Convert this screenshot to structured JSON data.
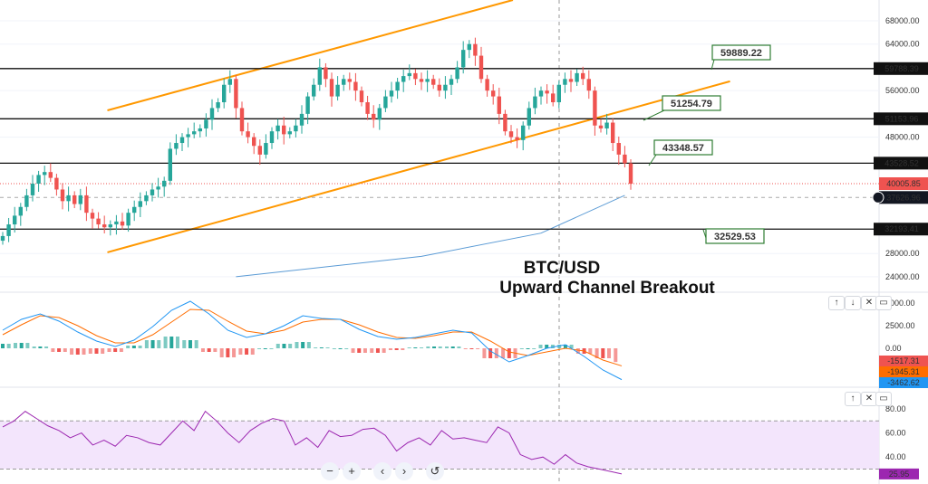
{
  "chart_data": {
    "type": "candlestick",
    "symbol_title": "BTC/USD",
    "subtitle": "Upward Channel Breakout",
    "price_axis": {
      "ticks": [
        24000,
        28000,
        48000,
        56000,
        64000,
        68000
      ],
      "ylim": [
        22500,
        71500
      ]
    },
    "closes": [
      31000,
      33000,
      34500,
      36000,
      38000,
      40000,
      41500,
      42000,
      41000,
      39000,
      37000,
      38000,
      36500,
      38000,
      35000,
      34000,
      33000,
      32500,
      33000,
      33500,
      32800,
      35000,
      36000,
      37000,
      38000,
      39000,
      39500,
      40500,
      46000,
      47000,
      48000,
      48500,
      49000,
      49500,
      51000,
      53000,
      54000,
      57000,
      58000,
      53000,
      49000,
      48000,
      46500,
      45000,
      47000,
      49000,
      50000,
      48500,
      49000,
      50000,
      52000,
      55000,
      57000,
      60000,
      58000,
      55000,
      57000,
      58000,
      57500,
      56000,
      54000,
      52000,
      51000,
      53000,
      55000,
      56000,
      57500,
      58500,
      59000,
      58000,
      57500,
      58000,
      57000,
      56000,
      57000,
      58000,
      60000,
      63000,
      64000,
      62000,
      58000,
      56000,
      55000,
      52000,
      49000,
      48000,
      47500,
      50000,
      53000,
      55000,
      56000,
      55500,
      54000,
      57000,
      58000,
      57500,
      59000,
      58000,
      56000,
      50000,
      49500,
      50500,
      47000,
      45000,
      43500,
      40000
    ],
    "horizontal_levels": [
      {
        "price": 59788.39,
        "label": "59788.39"
      },
      {
        "price": 51153.96,
        "label": "51153.96"
      },
      {
        "price": 43528.52,
        "label": "43528.52"
      },
      {
        "price": 32193.41,
        "label": "32193.41"
      }
    ],
    "annotations": [
      {
        "text": "59889.22",
        "price": 59889.22
      },
      {
        "text": "51254.79",
        "price": 51254.79
      },
      {
        "text": "43348.57",
        "price": 43348.57
      },
      {
        "text": "32529.53",
        "price": 32529.53
      }
    ],
    "channel": {
      "upper": [
        [
          17.5,
          52600
        ],
        [
          85.3,
          71580
        ]
      ],
      "lower": [
        [
          17.5,
          28200
        ],
        [
          121.6,
          57600
        ]
      ],
      "color": "#ff9800"
    },
    "moving_average": {
      "points": [
        [
          39,
          24000
        ],
        [
          70,
          27500
        ],
        [
          90,
          31500
        ],
        [
          104,
          38000
        ]
      ],
      "color": "#5b9bd5"
    },
    "last_price": {
      "label": "40005.85",
      "price": 40005.85,
      "color": "#ef5350"
    },
    "crosshair_price": {
      "label": "37626.96",
      "price": 37626.96
    },
    "macd": {
      "ticks": [
        5000,
        2500,
        0
      ],
      "macd": [
        2000,
        3200,
        3800,
        3000,
        1800,
        800,
        200,
        900,
        2400,
        4200,
        5200,
        3800,
        2000,
        1200,
        1600,
        2500,
        3600,
        3300,
        3200,
        2100,
        1300,
        1000,
        1200,
        1600,
        2000,
        1700,
        -300,
        -1500,
        -800,
        0,
        400,
        -900,
        -2400,
        -3462.62
      ],
      "signal": [
        1500,
        2600,
        3600,
        3400,
        2500,
        1400,
        600,
        600,
        1500,
        2900,
        4300,
        4200,
        3000,
        1900,
        1600,
        2000,
        2900,
        3200,
        3200,
        2600,
        1800,
        1200,
        1100,
        1400,
        1800,
        1800,
        800,
        -400,
        -800,
        -400,
        0,
        -300,
        -1300,
        -1945.31
      ],
      "histogram": [
        500,
        600,
        200,
        -400,
        -700,
        -600,
        -400,
        300,
        900,
        1300,
        900,
        -400,
        -1000,
        -700,
        0,
        500,
        700,
        100,
        0,
        -500,
        -500,
        -200,
        100,
        200,
        200,
        -100,
        -1100,
        -1100,
        0,
        400,
        400,
        -600,
        -1100,
        -1517.31
      ],
      "labels": [
        "-1517.31",
        "-1945.31",
        "-3462.62"
      ],
      "colors": {
        "macd": "#2196f3",
        "signal": "#ff6d00",
        "hist_pos": "#26a69a",
        "hist_neg": "#ef5350"
      }
    },
    "rsi": {
      "ticks": [
        80,
        60,
        40
      ],
      "band": [
        30,
        70
      ],
      "values": [
        65,
        70,
        78,
        72,
        66,
        62,
        56,
        60,
        50,
        54,
        49,
        58,
        56,
        52,
        50,
        60,
        70,
        62,
        78,
        70,
        60,
        52,
        62,
        68,
        72,
        70,
        50,
        56,
        48,
        62,
        57,
        58,
        63,
        64,
        58,
        45,
        52,
        56,
        50,
        62,
        55,
        56,
        54,
        52,
        65,
        60,
        42,
        38,
        40,
        34,
        42,
        35,
        32,
        30,
        28,
        25.95
      ],
      "label": "25.95",
      "color": "#9c27b0"
    }
  },
  "pane_buttons": {
    "up": "↑",
    "down": "↓",
    "close": "✕",
    "maximize": "▭"
  },
  "nav": {
    "zoom_out": "−",
    "zoom_in": "+",
    "scroll_left": "‹",
    "scroll_right": "›",
    "reset": "↺"
  }
}
